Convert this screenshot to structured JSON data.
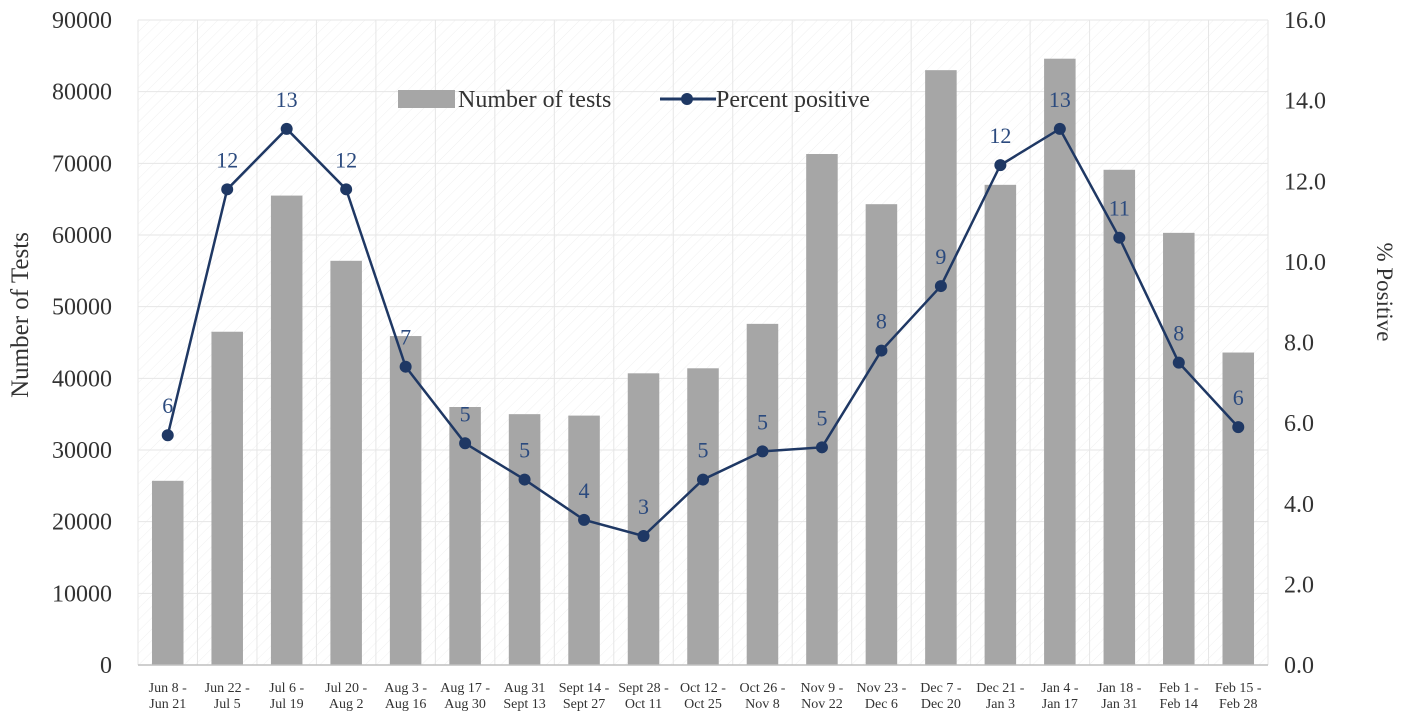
{
  "chart_data": {
    "type": "bar",
    "categories": [
      [
        "Jun 8 -",
        "Jun 21"
      ],
      [
        "Jun 22 -",
        "Jul 5"
      ],
      [
        "Jul 6 -",
        "Jul 19"
      ],
      [
        "Jul 20 -",
        "Aug 2"
      ],
      [
        "Aug 3 -",
        "Aug 16"
      ],
      [
        "Aug 17 -",
        "Aug 30"
      ],
      [
        "Aug 31",
        "Sept 13"
      ],
      [
        "Sept 14 -",
        "Sept 27"
      ],
      [
        "Sept 28 -",
        "Oct 11"
      ],
      [
        "Oct 12 -",
        "Oct 25"
      ],
      [
        "Oct 26 -",
        "Nov 8"
      ],
      [
        "Nov 9 -",
        "Nov 22"
      ],
      [
        "Nov 23 -",
        "Dec 6"
      ],
      [
        "Dec 7 -",
        "Dec 20"
      ],
      [
        "Dec 21 -",
        "Jan 3"
      ],
      [
        "Jan 4 -",
        "Jan 17"
      ],
      [
        "Jan 18 -",
        "Jan 31"
      ],
      [
        "Feb 1 -",
        "Feb 14"
      ],
      [
        "Feb 15 -",
        "Feb 28"
      ]
    ],
    "series": [
      {
        "name": "Number of tests",
        "type": "bar",
        "axis": "left",
        "color": "#a6a6a6",
        "values": [
          25700,
          46500,
          65500,
          56400,
          45900,
          36000,
          35000,
          34800,
          40700,
          41400,
          47600,
          71300,
          64300,
          83000,
          67000,
          84600,
          69100,
          60300,
          43600
        ]
      },
      {
        "name": "Percent positive",
        "type": "line",
        "axis": "right",
        "color": "#1f3864",
        "values": [
          5.7,
          11.8,
          13.3,
          11.8,
          7.4,
          5.5,
          4.6,
          3.6,
          3.2,
          4.6,
          5.3,
          5.4,
          7.8,
          9.4,
          12.4,
          13.3,
          10.6,
          7.5,
          5.9
        ],
        "labels": [
          "6",
          "12",
          "13",
          "12",
          "7",
          "5",
          "5",
          "4",
          "3",
          "5",
          "5",
          "5",
          "8",
          "9",
          "12",
          "13",
          "11",
          "8",
          "6"
        ]
      }
    ],
    "ylabel": "Number of Tests",
    "y2label": "% Positive",
    "ylim": [
      0,
      90000
    ],
    "y2lim": [
      0,
      16
    ],
    "yticks": [
      "0",
      "10000",
      "20000",
      "30000",
      "40000",
      "50000",
      "60000",
      "70000",
      "80000",
      "90000"
    ],
    "y2ticks": [
      "0.0",
      "2.0",
      "4.0",
      "6.0",
      "8.0",
      "10.0",
      "12.0",
      "14.0",
      "16.0"
    ],
    "grid": true,
    "legend_position": "top-center"
  }
}
